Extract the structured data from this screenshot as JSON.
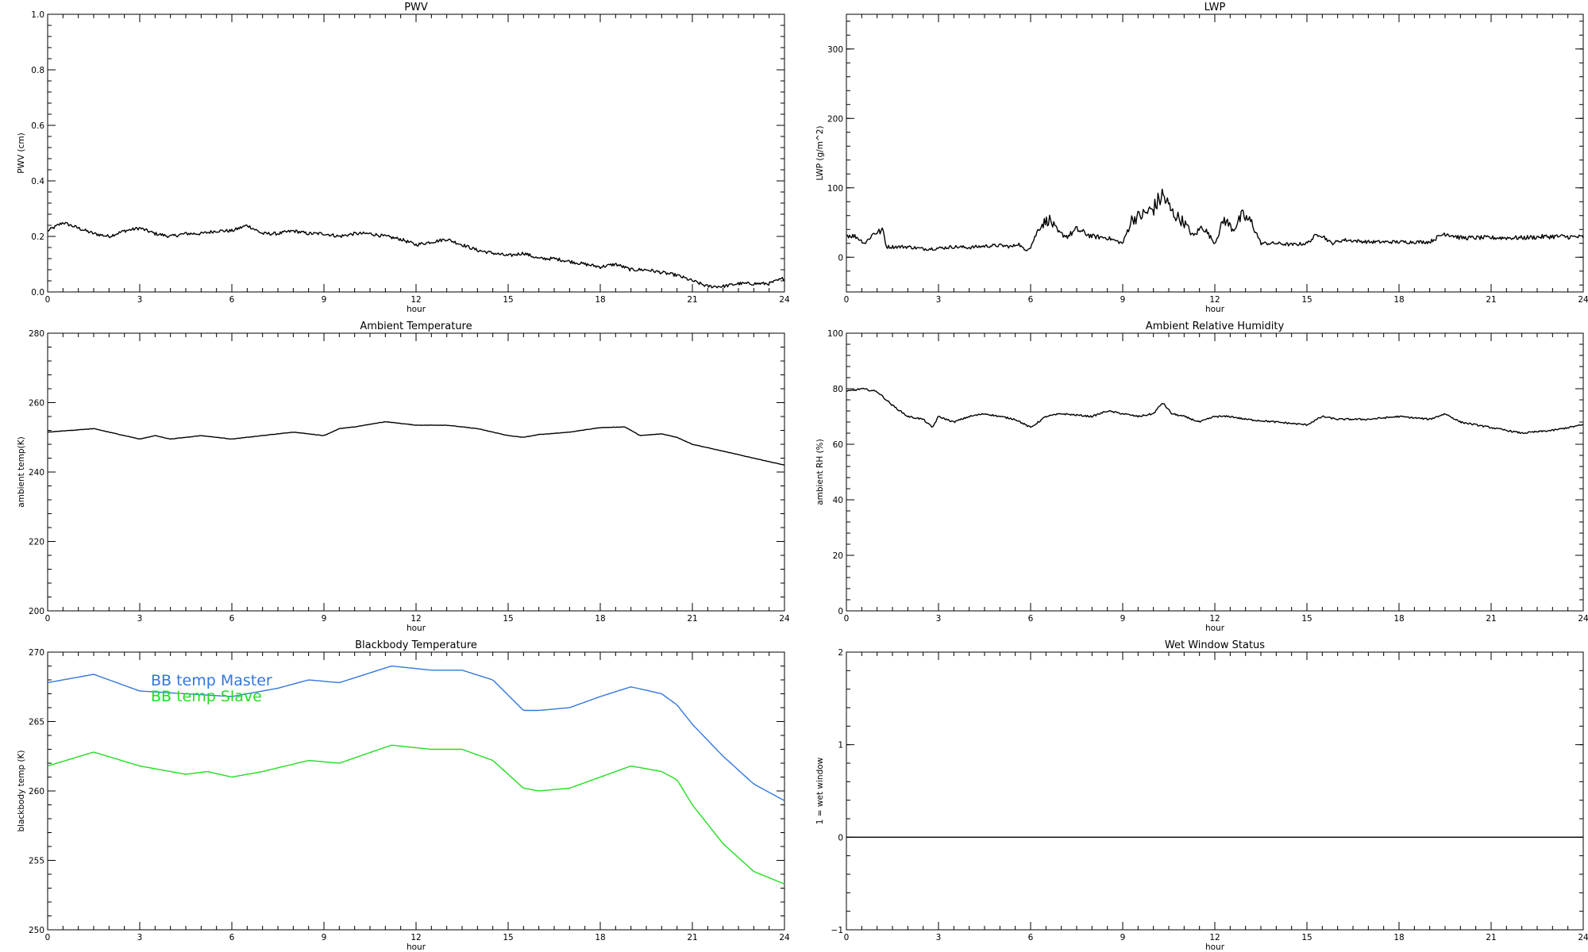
{
  "chart_data": [
    {
      "type": "line",
      "title": "PWV",
      "xlabel": "hour",
      "ylabel": "PWV (cm)",
      "xlim": [
        0,
        24
      ],
      "ylim": [
        0.0,
        1.0
      ],
      "xticks": [
        "0",
        "3",
        "6",
        "9",
        "12",
        "15",
        "18",
        "21",
        "24"
      ],
      "yticks": [
        "0.0",
        "0.2",
        "0.4",
        "0.6",
        "0.8",
        "1.0"
      ],
      "series": [
        {
          "color": "#000000",
          "noise": 0.006,
          "x": [
            0,
            0.5,
            1.0,
            1.5,
            2.0,
            2.5,
            3.0,
            3.5,
            4.0,
            4.5,
            5.0,
            5.5,
            6.0,
            6.5,
            7.0,
            7.5,
            8.0,
            8.5,
            9.0,
            9.5,
            10.0,
            10.5,
            11.0,
            11.5,
            12.0,
            12.5,
            13.0,
            13.5,
            14.0,
            14.5,
            15.0,
            15.5,
            16.0,
            16.5,
            17.0,
            17.5,
            18.0,
            18.5,
            19.0,
            19.5,
            20.0,
            20.5,
            21.0,
            21.5,
            22.0,
            22.5,
            23.0,
            23.5,
            24.0
          ],
          "y": [
            0.22,
            0.25,
            0.23,
            0.21,
            0.2,
            0.22,
            0.23,
            0.21,
            0.2,
            0.21,
            0.21,
            0.22,
            0.22,
            0.24,
            0.21,
            0.21,
            0.22,
            0.21,
            0.21,
            0.2,
            0.21,
            0.21,
            0.2,
            0.19,
            0.17,
            0.18,
            0.19,
            0.17,
            0.15,
            0.14,
            0.13,
            0.14,
            0.12,
            0.12,
            0.11,
            0.1,
            0.09,
            0.1,
            0.08,
            0.08,
            0.07,
            0.06,
            0.04,
            0.02,
            0.02,
            0.03,
            0.03,
            0.03,
            0.05
          ]
        }
      ]
    },
    {
      "type": "line",
      "title": "LWP",
      "xlabel": "hour",
      "ylabel": "LWP (g/m^2)",
      "xlim": [
        0,
        24
      ],
      "ylim": [
        -50,
        350
      ],
      "xticks": [
        "0",
        "3",
        "6",
        "9",
        "12",
        "15",
        "18",
        "21",
        "24"
      ],
      "yticks": [
        "0",
        "100",
        "200",
        "300"
      ],
      "series": [
        {
          "color": "#000000",
          "noise": 2.5,
          "x": [
            0,
            0.3,
            0.6,
            0.9,
            1.2,
            1.3,
            2.0,
            2.5,
            3.0,
            3.5,
            4.0,
            4.5,
            5.0,
            5.4,
            5.6,
            5.8,
            6.0,
            6.3,
            6.6,
            6.9,
            7.2,
            7.5,
            8.0,
            8.5,
            9.0,
            9.3,
            9.6,
            10.0,
            10.3,
            10.6,
            11.0,
            11.3,
            11.6,
            12.0,
            12.3,
            12.6,
            12.9,
            13.2,
            13.5,
            14.0,
            14.5,
            15.0,
            15.4,
            15.8,
            16.2,
            17.0,
            18.0,
            19.0,
            19.5,
            20.0,
            21.0,
            22.0,
            23.0,
            24.0
          ],
          "y": [
            32,
            30,
            20,
            35,
            38,
            15,
            15,
            12,
            13,
            15,
            14,
            16,
            17,
            15,
            20,
            10,
            15,
            45,
            55,
            35,
            30,
            40,
            30,
            28,
            20,
            55,
            60,
            70,
            90,
            65,
            50,
            30,
            45,
            20,
            55,
            40,
            60,
            50,
            20,
            20,
            18,
            20,
            35,
            20,
            25,
            22,
            22,
            22,
            35,
            28,
            28,
            28,
            30,
            29
          ]
        }
      ]
    },
    {
      "type": "line",
      "title": "Ambient Temperature",
      "xlabel": "hour",
      "ylabel": "ambient temp(K)",
      "xlim": [
        0,
        24
      ],
      "ylim": [
        200,
        280
      ],
      "xticks": [
        "0",
        "3",
        "6",
        "9",
        "12",
        "15",
        "18",
        "21",
        "24"
      ],
      "yticks": [
        "200",
        "220",
        "240",
        "260",
        "280"
      ],
      "series": [
        {
          "color": "#000000",
          "noise": 0.05,
          "x": [
            0,
            1.5,
            2.0,
            2.5,
            3.0,
            3.5,
            4.0,
            4.5,
            5.0,
            6.0,
            7.0,
            8.0,
            9.0,
            9.5,
            10.0,
            11.0,
            12.0,
            13.0,
            14.0,
            15.0,
            15.5,
            16.0,
            17.0,
            18.0,
            18.8,
            19.3,
            20.0,
            20.5,
            21.0,
            22.0,
            23.0,
            24.0
          ],
          "y": [
            251.5,
            252.5,
            251.5,
            250.5,
            249.5,
            250.5,
            249.5,
            250.0,
            250.5,
            249.5,
            250.5,
            251.5,
            250.5,
            252.5,
            253.0,
            254.5,
            253.5,
            253.5,
            252.5,
            250.5,
            250.0,
            250.8,
            251.5,
            252.8,
            253.0,
            250.5,
            251.0,
            250.0,
            248.0,
            246.0,
            244.0,
            242.0
          ]
        }
      ]
    },
    {
      "type": "line",
      "title": "Ambient Relative Humidity",
      "xlabel": "hour",
      "ylabel": "ambient RH (%)",
      "xlim": [
        0,
        24
      ],
      "ylim": [
        0,
        100
      ],
      "xticks": [
        "0",
        "3",
        "6",
        "9",
        "12",
        "15",
        "18",
        "21",
        "24"
      ],
      "yticks": [
        "0",
        "20",
        "40",
        "60",
        "80",
        "100"
      ],
      "series": [
        {
          "color": "#000000",
          "noise": 0.3,
          "x": [
            0,
            0.5,
            1.0,
            1.5,
            2.0,
            2.5,
            2.8,
            3.0,
            3.5,
            4.0,
            4.5,
            5.0,
            5.5,
            6.0,
            6.5,
            7.0,
            8.0,
            8.5,
            9.0,
            9.5,
            10.0,
            10.3,
            10.6,
            11.0,
            11.5,
            12.0,
            12.5,
            13.0,
            14.0,
            15.0,
            15.5,
            16.0,
            17.0,
            18.0,
            19.0,
            19.5,
            20.0,
            21.0,
            21.5,
            22.0,
            23.0,
            24.0
          ],
          "y": [
            79,
            80,
            79,
            74,
            70,
            69,
            66,
            70,
            68,
            70,
            71,
            70,
            69,
            66,
            70,
            71,
            70,
            72,
            71,
            70,
            71,
            75,
            71,
            70,
            68,
            70,
            70,
            69,
            68,
            67,
            70,
            69,
            69,
            70,
            69,
            71,
            68,
            66,
            65,
            64,
            65,
            67
          ]
        }
      ]
    },
    {
      "type": "line",
      "title": "Blackbody Temperature",
      "xlabel": "hour",
      "ylabel": "blackbody temp (K)",
      "xlim": [
        0,
        24
      ],
      "ylim": [
        250,
        270
      ],
      "xticks": [
        "0",
        "3",
        "6",
        "9",
        "12",
        "15",
        "18",
        "21",
        "24"
      ],
      "yticks": [
        "250",
        "255",
        "260",
        "265",
        "270"
      ],
      "legend": "top-left",
      "series": [
        {
          "name": "BB temp Master",
          "color": "#3377dd",
          "noise": 0,
          "x": [
            0,
            1.5,
            3.0,
            4.5,
            6.0,
            7.5,
            8.5,
            9.5,
            11.2,
            12.5,
            13.5,
            14.5,
            15.5,
            16.0,
            17.0,
            18.0,
            19.0,
            20.0,
            20.5,
            21.0,
            22.0,
            23.0,
            24.0
          ],
          "y": [
            267.8,
            268.4,
            267.2,
            267.0,
            266.8,
            267.4,
            268.0,
            267.8,
            269.0,
            268.7,
            268.7,
            268.0,
            265.8,
            265.8,
            266.0,
            266.8,
            267.5,
            267.0,
            266.2,
            264.8,
            262.5,
            260.5,
            259.3
          ]
        },
        {
          "name": "BB temp Slave",
          "color": "#22dd22",
          "noise": 0,
          "x": [
            0,
            1.5,
            3.0,
            4.5,
            5.2,
            6.0,
            7.0,
            8.5,
            9.5,
            11.2,
            12.5,
            13.5,
            14.5,
            15.5,
            16.0,
            17.0,
            18.0,
            19.0,
            20.0,
            20.5,
            21.0,
            22.0,
            23.0,
            24.0
          ],
          "y": [
            261.8,
            262.8,
            261.8,
            261.2,
            261.4,
            261.0,
            261.4,
            262.2,
            262.0,
            263.3,
            263.0,
            263.0,
            262.2,
            260.2,
            260.0,
            260.2,
            261.0,
            261.8,
            261.4,
            260.8,
            259.0,
            256.2,
            254.2,
            253.3
          ]
        }
      ]
    },
    {
      "type": "line",
      "title": "Wet Window Status",
      "xlabel": "hour",
      "ylabel": "1 = wet window",
      "xlim": [
        0,
        24
      ],
      "ylim": [
        -1,
        2
      ],
      "xticks": [
        "0",
        "3",
        "6",
        "9",
        "12",
        "15",
        "18",
        "21",
        "24"
      ],
      "yticks": [
        "−1",
        "0",
        "1",
        "2"
      ],
      "series": [
        {
          "color": "#000000",
          "noise": 0,
          "x": [
            0,
            24
          ],
          "y": [
            0,
            0
          ]
        }
      ]
    }
  ]
}
